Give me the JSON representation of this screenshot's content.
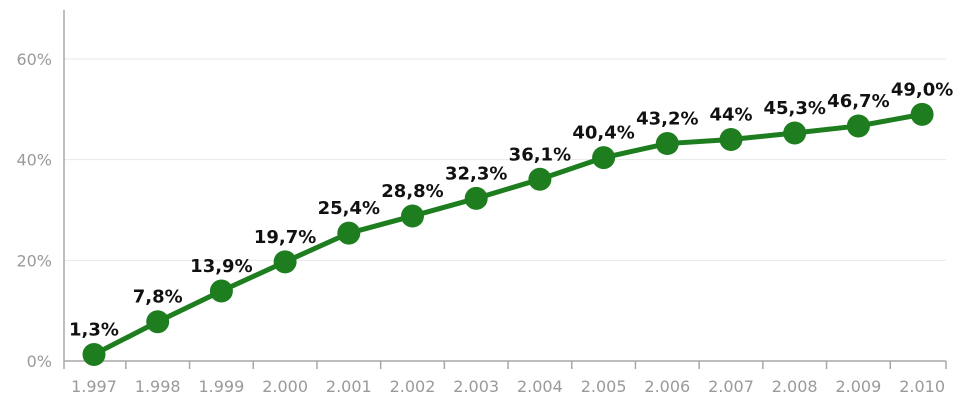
{
  "chart_data": {
    "type": "line",
    "title": "",
    "xlabel": "",
    "ylabel": "",
    "ylim": [
      0,
      60
    ],
    "y_ticks": [
      0,
      20,
      40,
      60
    ],
    "y_tick_labels": [
      "0%",
      "20%",
      "40%",
      "60%"
    ],
    "categories": [
      "1.997",
      "1.998",
      "1.999",
      "2.000",
      "2.001",
      "2.002",
      "2.003",
      "2.004",
      "2.005",
      "2.006",
      "2.007",
      "2.008",
      "2.009",
      "2.010"
    ],
    "series": [
      {
        "values": [
          1.3,
          7.8,
          13.9,
          19.7,
          25.4,
          28.8,
          32.3,
          36.1,
          40.4,
          43.2,
          44,
          45.3,
          46.7,
          49.0
        ],
        "labels": [
          "1,3%",
          "7,8%",
          "13,9%",
          "19,7%",
          "25,4%",
          "28,8%",
          "32,3%",
          "36,1%",
          "40,4%",
          "43,2%",
          "44%",
          "45,3%",
          "46,7%",
          "49,0%"
        ]
      }
    ],
    "grid": true,
    "legend": "none",
    "colors": {
      "line": "#1e7d1e",
      "marker": "#1e7d1e",
      "grid": "#e8e8e8",
      "axis": "#a8a8a8",
      "tick_text": "#9a9a9a",
      "label_text": "#111111"
    }
  }
}
